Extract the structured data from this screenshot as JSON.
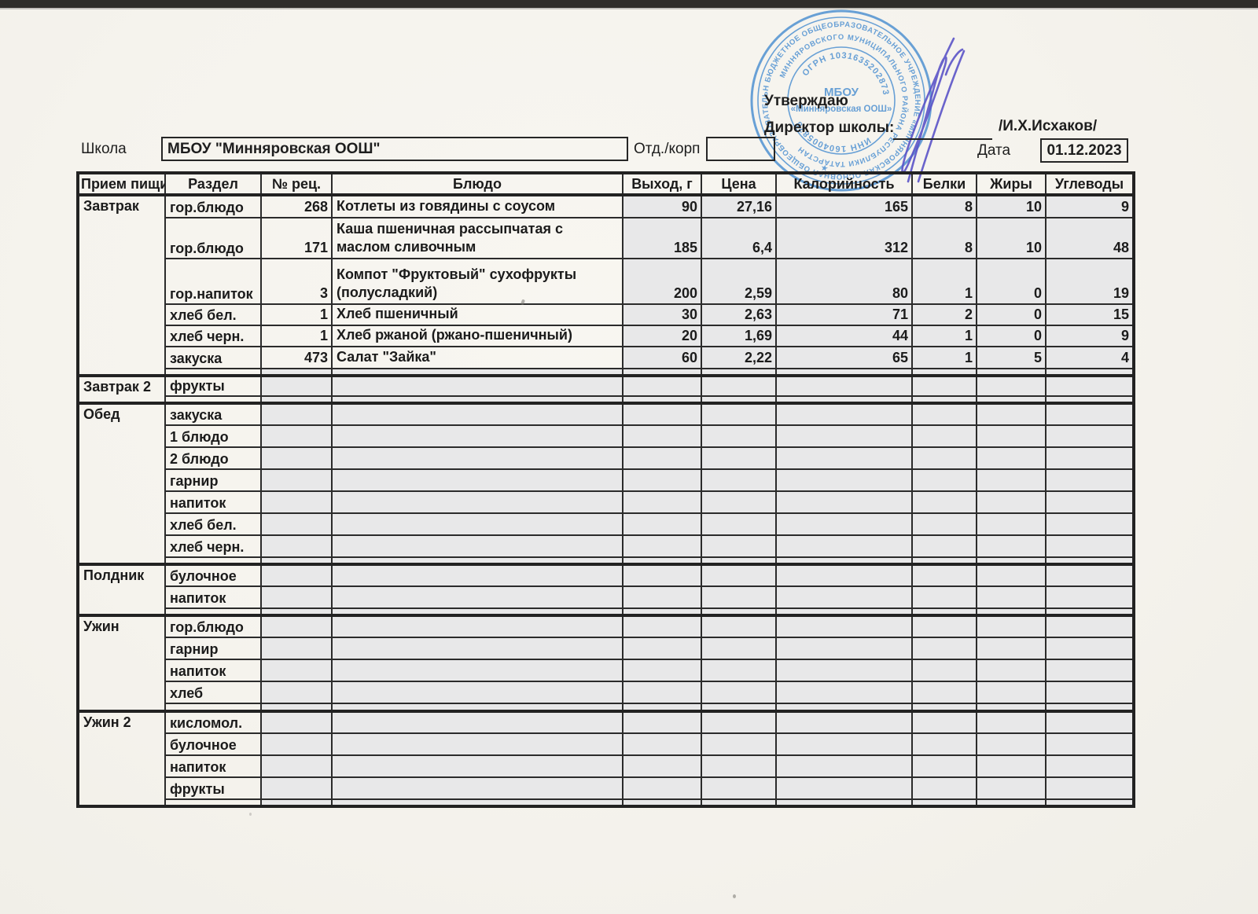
{
  "page": {
    "approval": {
      "line1": "Утверждаю",
      "line2": "Директор школы:",
      "signature_name": "/И.Х.Исхаков/"
    },
    "school_label": "Школа",
    "school_name": "МБОУ \"Минняровская ООШ\"",
    "dept_label": "Отд./корп",
    "dept_value": "",
    "date_label": "Дата",
    "date_value": "01.12.2023"
  },
  "stamp": {
    "ring1": "БЮДЖЕТНОЕ ОБЩЕОБРАЗОВАТЕЛЬНОЕ УЧРЕЖДЕНИЕ «МИННЯРОВСКАЯ ОСНОВНАЯ ОБЩЕОБРАЗОВАТЕЛЬНАЯ ШКОЛА»",
    "ring2": "МИННЯРОВСКОГО МУНИЦИПАЛЬНОГО РАЙОНА РЕСПУБЛИКИ ТАТАРСТАН",
    "ogrn": "ОГРН 1031635202873",
    "inn": "ИНН 1604005878",
    "center_line1": "МБОУ",
    "center_line2": "«Минняровская ООШ»",
    "star": "★",
    "color": "#4189cf"
  },
  "table": {
    "headers": [
      "Прием пищи",
      "Раздел",
      "№ рец.",
      "Блюдо",
      "Выход, г",
      "Цена",
      "Калорийность",
      "Белки",
      "Жиры",
      "Углеводы"
    ],
    "sections": [
      {
        "meal": "Завтрак",
        "rows": [
          {
            "razdel": "гор.блюдо",
            "rec": "268",
            "dish": "Котлеты из говядины с соусом",
            "out": "90",
            "price": "27,16",
            "kcal": "165",
            "protein": "8",
            "fat": "10",
            "carbs": "9"
          },
          {
            "razdel": "гор.блюдо",
            "rec": "171",
            "dish": "Каша пшеничная рассыпчатая с маслом сливочным",
            "out": "185",
            "price": "6,4",
            "kcal": "312",
            "protein": "8",
            "fat": "10",
            "carbs": "48"
          },
          {
            "razdel": "гор.напиток",
            "rec": "3",
            "dish": "Компот \"Фруктовый\" сухофрукты (полусладкий)",
            "out": "200",
            "price": "2,59",
            "kcal": "80",
            "protein": "1",
            "fat": "0",
            "carbs": "19"
          },
          {
            "razdel": "хлеб бел.",
            "rec": "1",
            "dish": "Хлеб пшеничный",
            "out": "30",
            "price": "2,63",
            "kcal": "71",
            "protein": "2",
            "fat": "0",
            "carbs": "15"
          },
          {
            "razdel": "хлеб черн.",
            "rec": "1",
            "dish": "Хлеб ржаной (ржано-пшеничный)",
            "out": "20",
            "price": "1,69",
            "kcal": "44",
            "protein": "1",
            "fat": "0",
            "carbs": "9"
          },
          {
            "razdel": "закуска",
            "rec": "473",
            "dish": "Салат \"Зайка\"",
            "out": "60",
            "price": "2,22",
            "kcal": "65",
            "protein": "1",
            "fat": "5",
            "carbs": "4"
          }
        ]
      },
      {
        "meal": "Завтрак 2",
        "rows": [
          {
            "razdel": "фрукты"
          }
        ]
      },
      {
        "meal": "Обед",
        "rows": [
          {
            "razdel": "закуска"
          },
          {
            "razdel": "1 блюдо"
          },
          {
            "razdel": "2 блюдо"
          },
          {
            "razdel": "гарнир"
          },
          {
            "razdel": "напиток"
          },
          {
            "razdel": "хлеб бел."
          },
          {
            "razdel": "хлеб черн."
          }
        ]
      },
      {
        "meal": "Полдник",
        "rows": [
          {
            "razdel": "булочное"
          },
          {
            "razdel": "напиток"
          }
        ]
      },
      {
        "meal": "Ужин",
        "rows": [
          {
            "razdel": "гор.блюдо"
          },
          {
            "razdel": "гарнир"
          },
          {
            "razdel": "напиток"
          },
          {
            "razdel": "хлеб"
          }
        ]
      },
      {
        "meal": "Ужин 2",
        "rows": [
          {
            "razdel": "кисломол."
          },
          {
            "razdel": "булочное"
          },
          {
            "razdel": "напиток"
          },
          {
            "razdel": "фрукты"
          }
        ]
      }
    ]
  }
}
